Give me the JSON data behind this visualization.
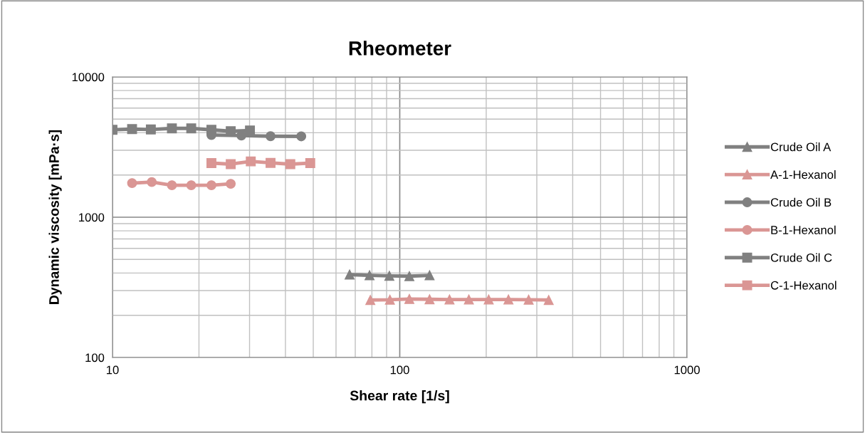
{
  "chart_data": {
    "type": "line",
    "title": "Rheometer",
    "xlabel": "Shear rate [1/s]",
    "ylabel": "Dynamic viscosity [mPa·s]",
    "log": "xy",
    "xlim": [
      10,
      1000
    ],
    "ylim": [
      100,
      10000
    ],
    "xticks": [
      10,
      100,
      1000
    ],
    "yticks": [
      100,
      1000,
      10000
    ],
    "grid": true,
    "legend": "right",
    "series": [
      {
        "name": "Crude Oil A",
        "color": "#808080",
        "marker": "triangle",
        "x": [
          66.9,
          78.5,
          92,
          108,
          127
        ],
        "values": [
          390,
          385,
          382,
          380,
          385
        ]
      },
      {
        "name": "A-1-Hexanol",
        "color": "#da9694",
        "marker": "triangle",
        "x": [
          79,
          92.4,
          108,
          127,
          149,
          174,
          204,
          239,
          281,
          330
        ],
        "values": [
          257,
          258,
          261,
          260,
          259,
          259,
          259,
          259,
          258,
          257
        ]
      },
      {
        "name": "Crude Oil B",
        "color": "#808080",
        "marker": "circle",
        "x": [
          22.1,
          28.1,
          35.5,
          45.4
        ],
        "values": [
          3850,
          3820,
          3780,
          3770
        ]
      },
      {
        "name": "B-1-Hexanol",
        "color": "#da9694",
        "marker": "circle",
        "x": [
          11.7,
          13.7,
          16.1,
          18.8,
          22.1,
          25.8
        ],
        "values": [
          1750,
          1780,
          1690,
          1690,
          1690,
          1730
        ]
      },
      {
        "name": "Crude Oil C",
        "color": "#808080",
        "marker": "square",
        "x": [
          10,
          11.7,
          13.6,
          16.1,
          18.8,
          22.1,
          25.8,
          30.1
        ],
        "values": [
          4200,
          4250,
          4220,
          4300,
          4300,
          4200,
          4100,
          4150
        ]
      },
      {
        "name": "C-1-Hexanol",
        "color": "#da9694",
        "marker": "square",
        "x": [
          22.1,
          25.8,
          30.3,
          35.5,
          41.6,
          48.8
        ],
        "values": [
          2430,
          2390,
          2500,
          2440,
          2390,
          2430
        ]
      }
    ]
  }
}
